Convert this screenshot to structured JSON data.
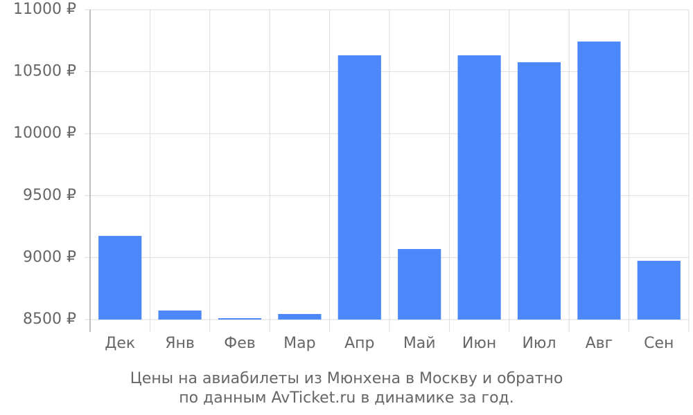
{
  "chart_data": {
    "type": "bar",
    "caption": [
      "Цены на авиабилеты из Мюнхена в Москву и обратно",
      "по данным AvTicket.ru в динамике за год."
    ],
    "categories": [
      "Дек",
      "Янв",
      "Фев",
      "Мар",
      "Апр",
      "Май",
      "Июн",
      "Июл",
      "Авг",
      "Сен"
    ],
    "values": [
      9175,
      8573,
      8511,
      8545,
      10632,
      9069,
      10632,
      10576,
      10743,
      8974
    ],
    "color": "#4d88fa",
    "ylim": [
      8500,
      11000
    ],
    "yticks": [
      {
        "value": 8500,
        "label": "8500 ₽"
      },
      {
        "value": 9000,
        "label": "9000 ₽"
      },
      {
        "value": 9500,
        "label": "9500 ₽"
      },
      {
        "value": 10000,
        "label": "10000 ₽"
      },
      {
        "value": 10500,
        "label": "10500 ₽"
      },
      {
        "value": 11000,
        "label": "11000 ₽"
      }
    ],
    "grid": true
  }
}
